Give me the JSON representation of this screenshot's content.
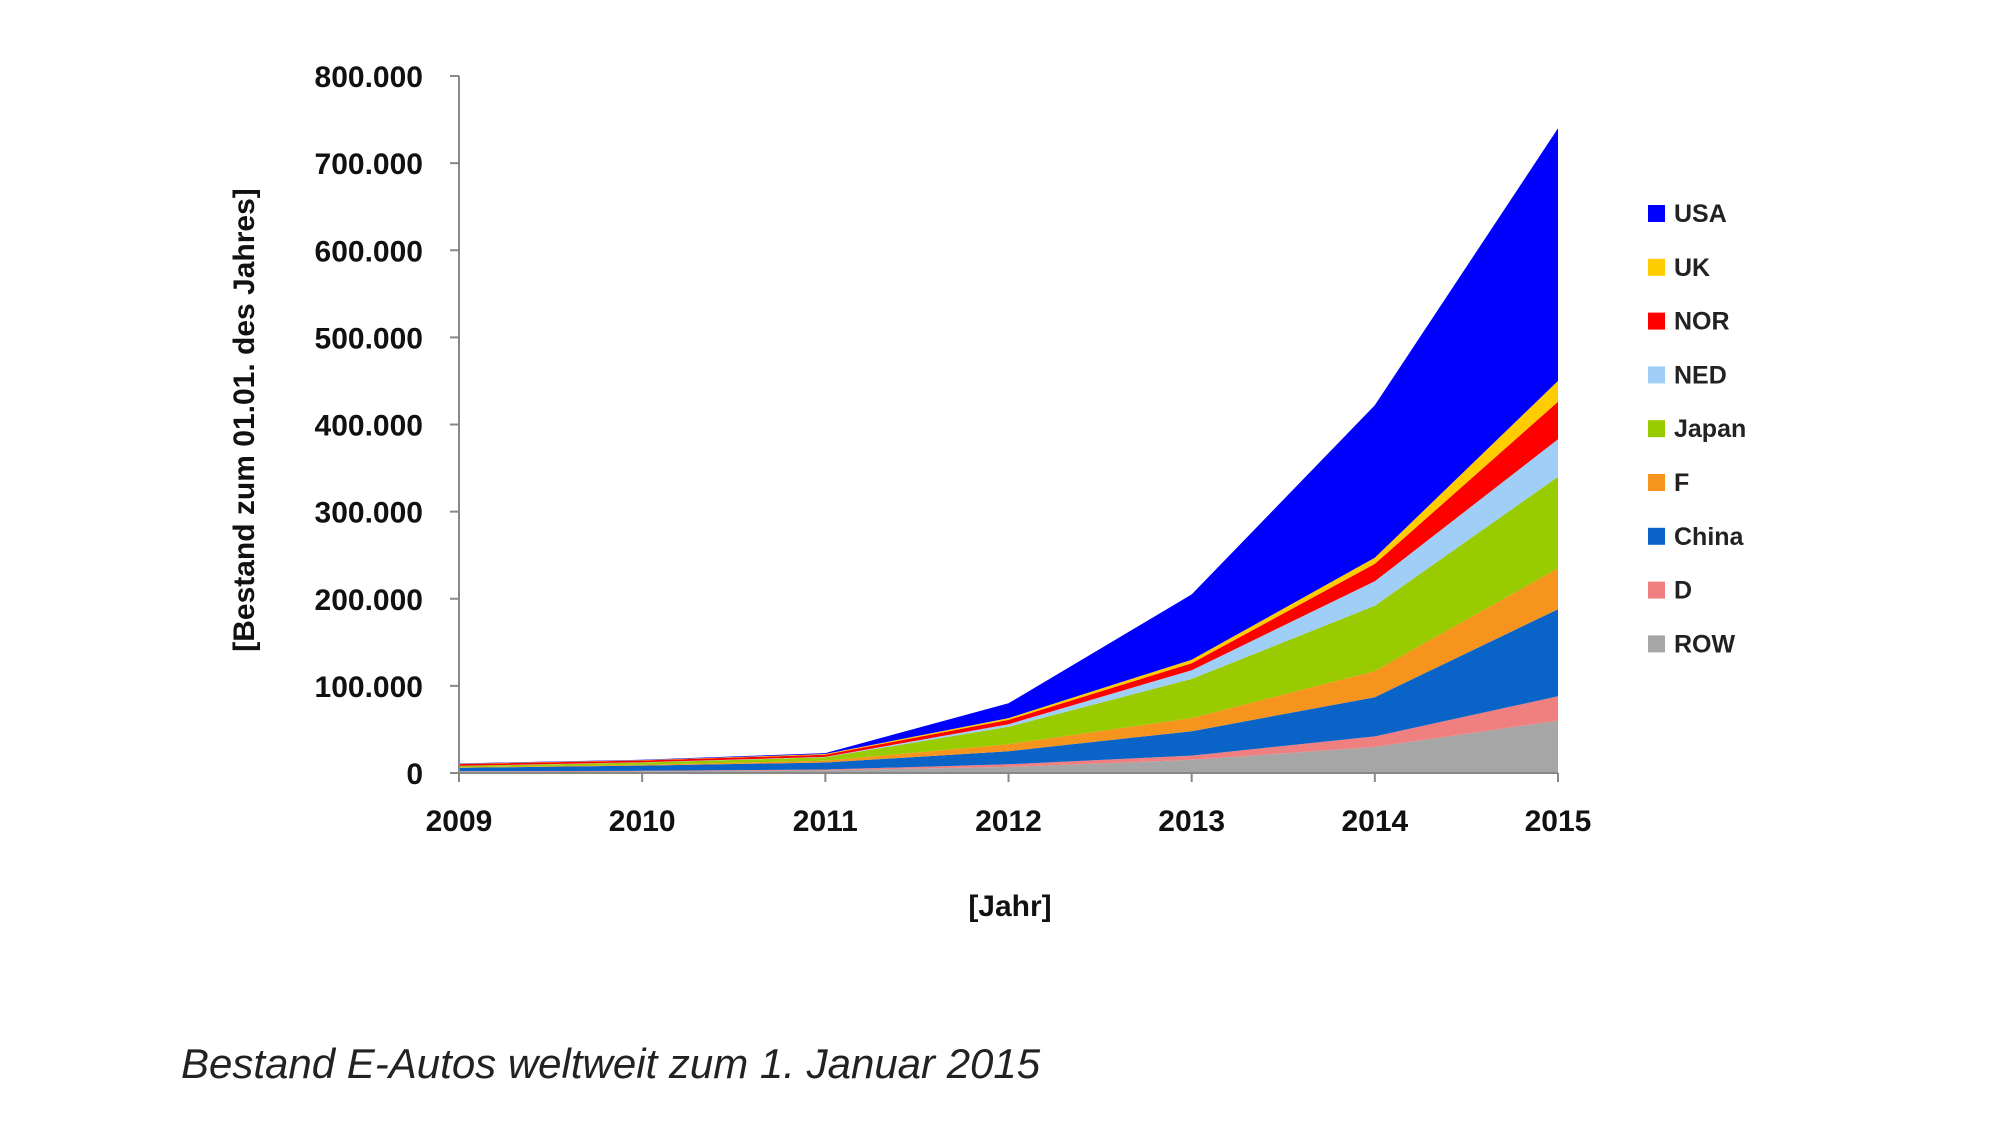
{
  "caption": "Bestand E-Autos weltweit zum 1. Januar 2015",
  "chart_data": {
    "type": "area",
    "stacked": true,
    "title": "",
    "xlabel": "[Jahr]",
    "ylabel": "[Bestand zum 01.01. des Jahres]",
    "x": [
      "2009",
      "2010",
      "2011",
      "2012",
      "2013",
      "2014",
      "2015"
    ],
    "ylim": [
      0,
      800000
    ],
    "yticks": [
      0,
      100000,
      200000,
      300000,
      400000,
      500000,
      600000,
      700000,
      800000
    ],
    "ytick_labels": [
      "0",
      "100.000",
      "200.000",
      "300.000",
      "400.000",
      "500.000",
      "600.000",
      "700.000",
      "800.000"
    ],
    "grid": false,
    "legend_position": "right",
    "series": [
      {
        "name": "ROW",
        "color": "#a6a6a6",
        "values": [
          1500,
          2000,
          3000,
          7000,
          15000,
          30000,
          60000
        ]
      },
      {
        "name": "D",
        "color": "#f08080",
        "values": [
          500,
          500,
          1000,
          3000,
          5000,
          12000,
          28000
        ]
      },
      {
        "name": "China",
        "color": "#0a64c8",
        "values": [
          4000,
          6000,
          8000,
          15000,
          28000,
          45000,
          100000
        ]
      },
      {
        "name": "F",
        "color": "#f7941d",
        "values": [
          500,
          1000,
          2000,
          8000,
          15000,
          30000,
          47000
        ]
      },
      {
        "name": "Japan",
        "color": "#99cc00",
        "values": [
          1500,
          2500,
          4000,
          20000,
          45000,
          75000,
          105000
        ]
      },
      {
        "name": "NED",
        "color": "#9fcff7",
        "values": [
          200,
          300,
          500,
          3000,
          10000,
          28000,
          43000
        ]
      },
      {
        "name": "NOR",
        "color": "#ff0000",
        "values": [
          2000,
          2000,
          2500,
          5000,
          8000,
          20000,
          43000
        ]
      },
      {
        "name": "UK",
        "color": "#ffcc00",
        "values": [
          500,
          500,
          800,
          2000,
          4000,
          7000,
          24000
        ]
      },
      {
        "name": "USA",
        "color": "#0000ff",
        "values": [
          300,
          500,
          1000,
          17000,
          75000,
          175000,
          290000
        ]
      }
    ]
  }
}
